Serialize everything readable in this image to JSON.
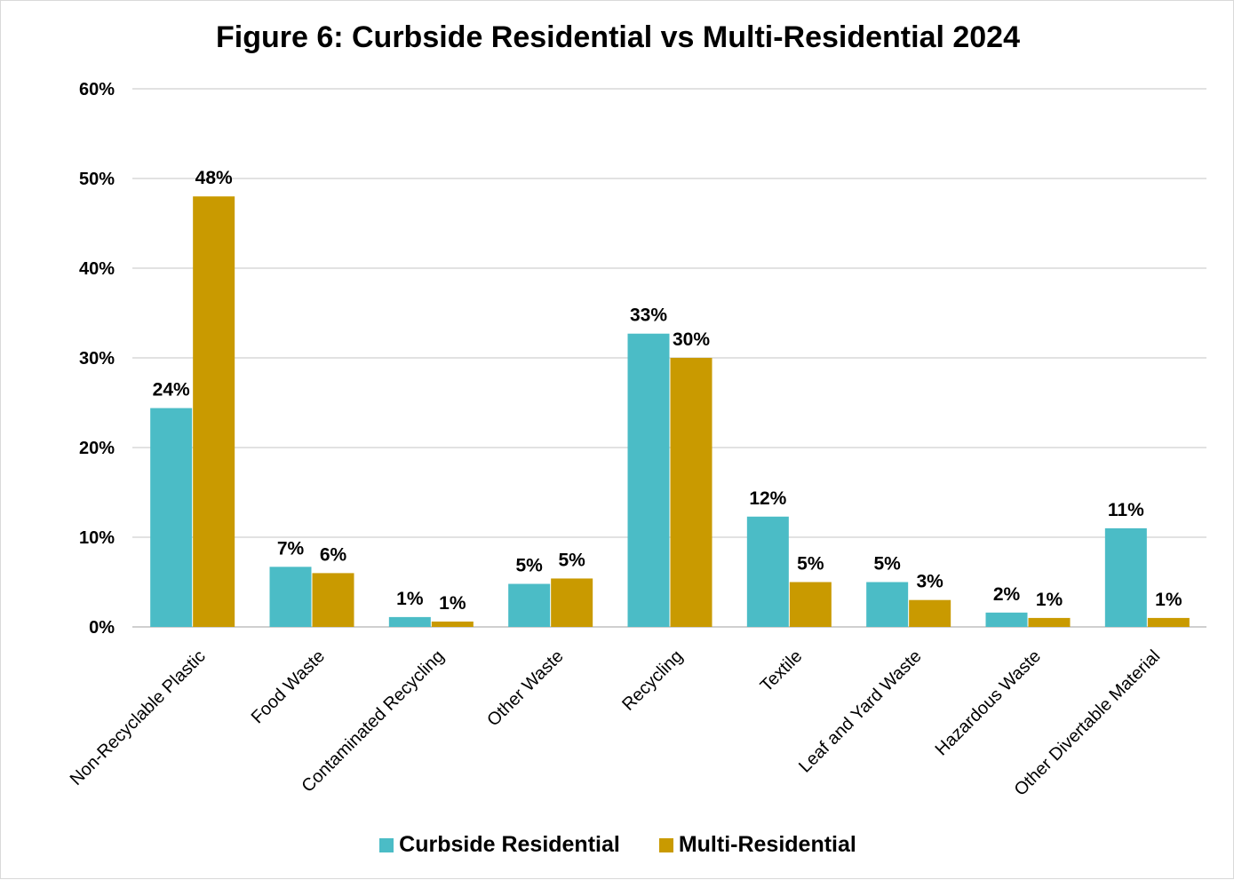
{
  "chart_data": {
    "type": "bar",
    "title": "Figure 6: Curbside Residential vs Multi-Residential 2024",
    "xlabel": "",
    "ylabel": "",
    "ylim": [
      0,
      60
    ],
    "yticks": [
      "0%",
      "10%",
      "20%",
      "30%",
      "40%",
      "50%",
      "60%"
    ],
    "grid": true,
    "legend_position": "bottom",
    "categories": [
      "Non-Recyclable Plastic",
      "Food Waste",
      "Contaminated Recycling",
      "Other Waste",
      "Recycling",
      "Textile",
      "Leaf and Yard Waste",
      "Hazardous Waste",
      "Other Divertable Material"
    ],
    "series": [
      {
        "name": "Curbside Residential",
        "color": "#4BBCC6",
        "values": [
          24.4,
          6.7,
          1.1,
          4.8,
          32.7,
          12.3,
          5.0,
          1.6,
          11.0
        ],
        "labels": [
          "24%",
          "7%",
          "1%",
          "5%",
          "33%",
          "12%",
          "5%",
          "2%",
          "11%"
        ]
      },
      {
        "name": "Multi-Residential",
        "color": "#C99A00",
        "values": [
          48.0,
          6.0,
          0.6,
          5.4,
          30.0,
          5.0,
          3.0,
          1.0,
          1.0
        ],
        "labels": [
          "48%",
          "6%",
          "1%",
          "5%",
          "30%",
          "5%",
          "3%",
          "1%",
          "1%"
        ]
      }
    ]
  }
}
